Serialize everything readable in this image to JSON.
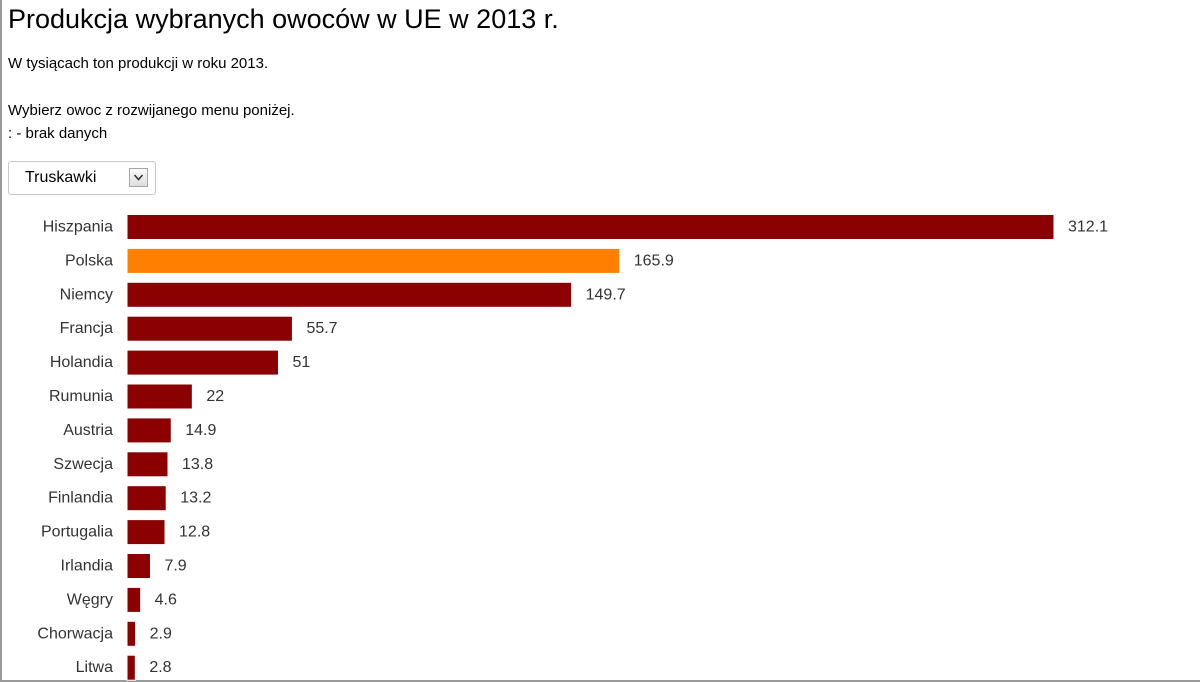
{
  "header": {
    "title": "Produkcja wybranych owoców w UE w 2013 r.",
    "subtitle": "W tysiącach ton produkcji w roku 2013.",
    "instruction": "Wybierz owoc z rozwijanego menu poniżej.",
    "note": ": - brak danych"
  },
  "dropdown": {
    "selected": "Truskawki",
    "icon": "chevron-down-icon"
  },
  "colors": {
    "bar": "#8b0000",
    "highlight": "#ff7f00",
    "label": "#333333"
  },
  "chart_data": {
    "type": "bar",
    "orientation": "horizontal",
    "categories": [
      "Hiszpania",
      "Polska",
      "Niemcy",
      "Francja",
      "Holandia",
      "Rumunia",
      "Austria",
      "Szwecja",
      "Finlandia",
      "Portugalia",
      "Irlandia",
      "Węgry",
      "Chorwacja",
      "Litwa"
    ],
    "values": [
      312.1,
      165.9,
      149.7,
      55.7,
      51,
      22,
      14.9,
      13.8,
      13.2,
      12.8,
      7.9,
      4.6,
      2.9,
      2.8
    ],
    "value_labels": [
      "312.1",
      "165.9",
      "149.7",
      "55.7",
      "51",
      "22",
      "14.9",
      "13.8",
      "13.2",
      "12.8",
      "7.9",
      "4.6",
      "2.9",
      "2.8"
    ],
    "highlight": "Polska",
    "xlim": [
      0,
      312.1
    ],
    "grid": false,
    "legend": "none"
  }
}
